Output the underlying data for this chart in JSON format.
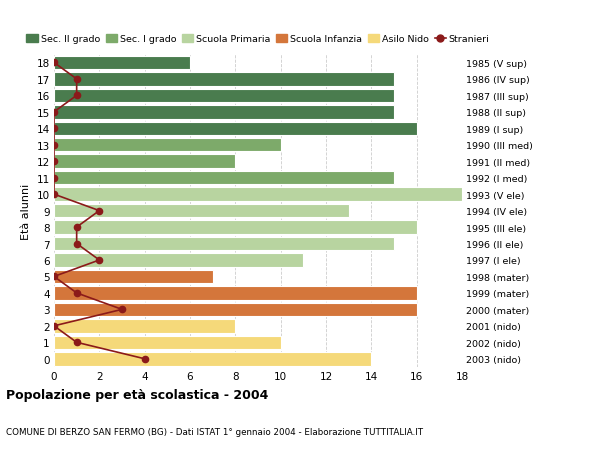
{
  "ages": [
    18,
    17,
    16,
    15,
    14,
    13,
    12,
    11,
    10,
    9,
    8,
    7,
    6,
    5,
    4,
    3,
    2,
    1,
    0
  ],
  "anni_nascita": [
    "1985 (V sup)",
    "1986 (IV sup)",
    "1987 (III sup)",
    "1988 (II sup)",
    "1989 (I sup)",
    "1990 (III med)",
    "1991 (II med)",
    "1992 (I med)",
    "1993 (V ele)",
    "1994 (IV ele)",
    "1995 (III ele)",
    "1996 (II ele)",
    "1997 (I ele)",
    "1998 (mater)",
    "1999 (mater)",
    "2000 (mater)",
    "2001 (nido)",
    "2002 (nido)",
    "2003 (nido)"
  ],
  "bar_values": [
    6,
    15,
    15,
    15,
    16,
    10,
    8,
    15,
    18,
    13,
    16,
    15,
    11,
    7,
    16,
    16,
    8,
    10,
    14
  ],
  "bar_colors": [
    "#4a7c4e",
    "#4a7c4e",
    "#4a7c4e",
    "#4a7c4e",
    "#4a7c4e",
    "#7daa6a",
    "#7daa6a",
    "#7daa6a",
    "#b8d4a0",
    "#b8d4a0",
    "#b8d4a0",
    "#b8d4a0",
    "#b8d4a0",
    "#d4763b",
    "#d4763b",
    "#d4763b",
    "#f5d97a",
    "#f5d97a",
    "#f5d97a"
  ],
  "stranieri_values": [
    0,
    1,
    1,
    0,
    0,
    0,
    0,
    0,
    0,
    2,
    1,
    1,
    2,
    0,
    1,
    3,
    0,
    1,
    4
  ],
  "stranieri_color": "#8b1a1a",
  "legend_labels": [
    "Sec. II grado",
    "Sec. I grado",
    "Scuola Primaria",
    "Scuola Infanzia",
    "Asilo Nido",
    "Stranieri"
  ],
  "legend_colors": [
    "#4a7c4e",
    "#7daa6a",
    "#b8d4a0",
    "#d4763b",
    "#f5d97a",
    "#8b1a1a"
  ],
  "title": "Popolazione per età scolastica - 2004",
  "subtitle": "COMUNE DI BERZO SAN FERMO (BG) - Dati ISTAT 1° gennaio 2004 - Elaborazione TUTTITALIA.IT",
  "ylabel_left": "Età alunni",
  "xlim": [
    0,
    18
  ],
  "grid_color": "#cccccc",
  "bg_color": "#ffffff",
  "plot_bg_color": "#ffffff"
}
